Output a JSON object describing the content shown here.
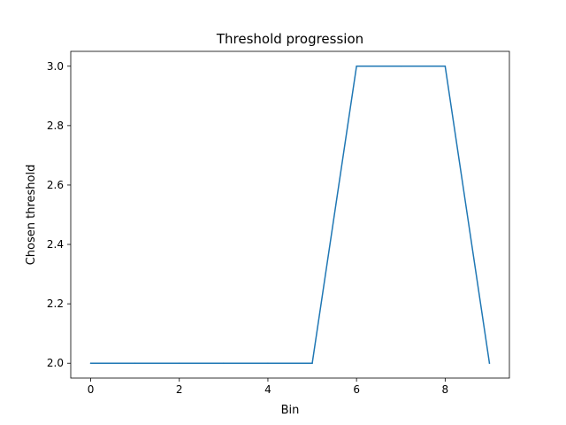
{
  "chart_data": {
    "type": "line",
    "title": "Threshold progression",
    "xlabel": "Bin",
    "ylabel": "Chosen threshold",
    "x": [
      0,
      1,
      2,
      3,
      4,
      5,
      6,
      7,
      8,
      9
    ],
    "series": [
      {
        "values": [
          2.0,
          2.0,
          2.0,
          2.0,
          2.0,
          2.0,
          3.0,
          3.0,
          3.0,
          2.0
        ],
        "color": "#1f77b4"
      }
    ],
    "xlim": [
      -0.45,
      9.45
    ],
    "ylim": [
      1.95,
      3.05
    ],
    "xticks": [
      0,
      2,
      4,
      6,
      8
    ],
    "xtick_labels": [
      "0",
      "2",
      "4",
      "6",
      "8"
    ],
    "yticks": [
      2.0,
      2.2,
      2.4,
      2.6,
      2.8,
      3.0
    ],
    "ytick_labels": [
      "2.0",
      "2.2",
      "2.4",
      "2.6",
      "2.8",
      "3.0"
    ],
    "grid": false,
    "legend": false
  }
}
